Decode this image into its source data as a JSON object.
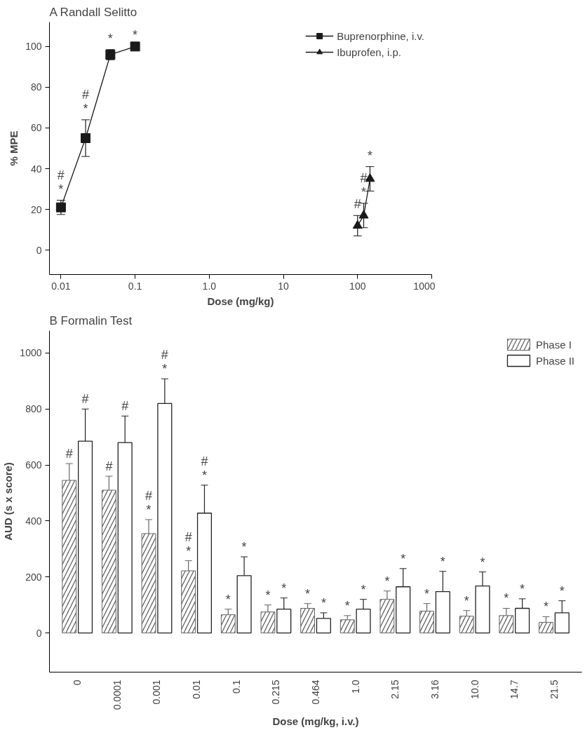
{
  "chart_data": [
    {
      "type": "line",
      "title": "A    Randall Selitto",
      "xlabel": "Dose (mg/kg)",
      "ylabel": "% MPE",
      "log": "x",
      "legend": "top right",
      "grid": false,
      "xlim": [
        0.007,
        1000
      ],
      "xticks": [
        0.01,
        0.1,
        {
          "value": 1,
          "label": "1.0"
        },
        10,
        100,
        1000
      ],
      "ylim": [
        -12,
        112
      ],
      "yticks": [
        0,
        20,
        40,
        60,
        80,
        100
      ],
      "series": [
        {
          "name": "Buprenorphine, i.v.",
          "color": "#1a1a1a",
          "marker": "square",
          "x": [
            0.01,
            0.0215,
            0.0464,
            0.1
          ],
          "values": [
            21,
            55,
            96,
            100
          ],
          "errors": [
            3.5,
            9,
            2.5,
            null
          ],
          "value_labels": [
            "#\n*",
            "#\n*",
            "*",
            "*"
          ]
        },
        {
          "name": "Ibuprofen, i.p.",
          "color": "#1a1a1a",
          "marker": "triangle",
          "x": [
            100,
            121,
            147
          ],
          "values": [
            12,
            17,
            35
          ],
          "errors": [
            5,
            6,
            6
          ],
          "value_labels": [
            "#",
            "#\n*",
            "*"
          ]
        }
      ]
    },
    {
      "type": "bar",
      "title": "B    Formalin Test",
      "xlabel": "Dose (mg/kg, i.v.)",
      "ylabel": "AUD (s x score)",
      "legend": "top right",
      "grid": false,
      "categories": [
        "0",
        "0.0001",
        "0.001",
        "0.01",
        "0.1",
        "0.215",
        "0.464",
        "1.0",
        "2.15",
        "3.16",
        "10.0",
        "14.7",
        "21.5"
      ],
      "ylim": [
        -140,
        1080
      ],
      "yticks": [
        0,
        200,
        400,
        600,
        800,
        1000
      ],
      "series": [
        {
          "name": "Phase I",
          "color": "#666666",
          "values": [
            545,
            510,
            355,
            222,
            65,
            75,
            88,
            47,
            120,
            78,
            60,
            62,
            38
          ],
          "errors": [
            60,
            50,
            50,
            36,
            20,
            25,
            17,
            15,
            30,
            27,
            20,
            26,
            20
          ],
          "value_labels": [
            "#",
            "#",
            "#\n*",
            "#\n*",
            "*",
            "*",
            "*",
            "*",
            "*",
            "*",
            "*",
            "*",
            "*"
          ]
        },
        {
          "name": "Phase II",
          "color": "#222222",
          "values": [
            685,
            680,
            820,
            428,
            205,
            85,
            52,
            85,
            165,
            148,
            168,
            88,
            72
          ],
          "errors": [
            115,
            95,
            88,
            100,
            67,
            40,
            20,
            35,
            65,
            72,
            50,
            34,
            43
          ],
          "value_labels": [
            "#",
            "#",
            "#\n*",
            "#\n*",
            "*",
            "*",
            "*",
            "*",
            "*",
            "*",
            "*",
            "*",
            "*"
          ]
        }
      ]
    }
  ]
}
